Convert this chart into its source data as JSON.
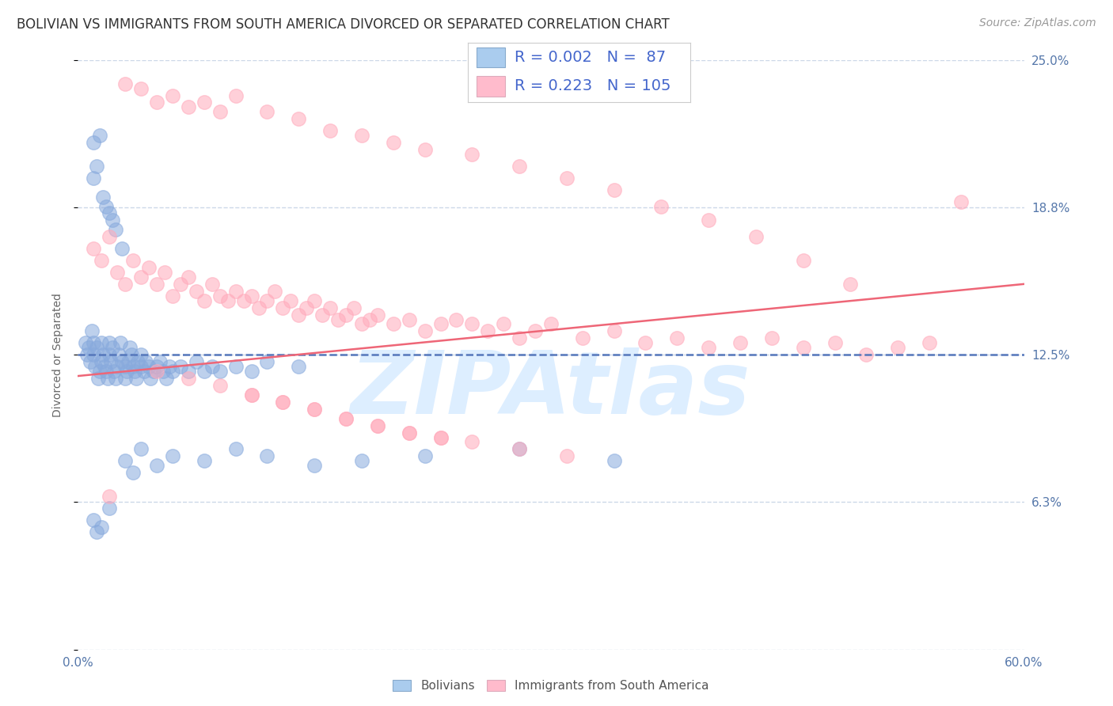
{
  "title": "BOLIVIAN VS IMMIGRANTS FROM SOUTH AMERICA DIVORCED OR SEPARATED CORRELATION CHART",
  "source_text": "Source: ZipAtlas.com",
  "ylabel": "Divorced or Separated",
  "xlim": [
    0.0,
    0.6
  ],
  "ylim": [
    0.0,
    0.25
  ],
  "yticks": [
    0.0,
    0.0625,
    0.125,
    0.1875,
    0.25
  ],
  "ytick_labels": [
    "",
    "6.3%",
    "12.5%",
    "18.8%",
    "25.0%"
  ],
  "xticks": [
    0.0,
    0.1,
    0.2,
    0.3,
    0.4,
    0.5,
    0.6
  ],
  "xtick_labels": [
    "0.0%",
    "",
    "",
    "",
    "",
    "",
    "60.0%"
  ],
  "legend_entries": [
    {
      "color_face": "#aaccee",
      "color_edge": "#88aacc",
      "R": "0.002",
      "N": " 87"
    },
    {
      "color_face": "#ffbbcc",
      "color_edge": "#ddaabb",
      "R": "0.223",
      "N": "105"
    }
  ],
  "legend_label_color": "#4466cc",
  "blue_scatter_color": "#88aadd",
  "pink_scatter_color": "#ffaabb",
  "blue_line_color": "#5577bb",
  "pink_line_color": "#ee6677",
  "grid_color": "#ccd8e8",
  "watermark_text": "ZIPAtlas",
  "watermark_color": "#ddeeff",
  "background_color": "#ffffff",
  "title_color": "#333333",
  "source_color": "#999999",
  "axis_text_color": "#5577aa",
  "title_fontsize": 12,
  "ylabel_fontsize": 10,
  "tick_fontsize": 11,
  "legend_fontsize": 14,
  "source_fontsize": 10,
  "blue_line_x": [
    0.0,
    0.6
  ],
  "blue_line_y": [
    0.125,
    0.125
  ],
  "pink_line_x": [
    0.0,
    0.6
  ],
  "pink_line_y": [
    0.116,
    0.155
  ],
  "bottom_labels": [
    "Bolivians",
    "Immigrants from South America"
  ],
  "figsize": [
    14.06,
    8.92
  ],
  "dpi": 100,
  "blue_x": [
    0.005,
    0.006,
    0.007,
    0.008,
    0.009,
    0.01,
    0.01,
    0.011,
    0.012,
    0.013,
    0.014,
    0.015,
    0.015,
    0.016,
    0.017,
    0.018,
    0.019,
    0.02,
    0.02,
    0.021,
    0.022,
    0.023,
    0.024,
    0.025,
    0.026,
    0.027,
    0.028,
    0.03,
    0.03,
    0.031,
    0.032,
    0.033,
    0.034,
    0.035,
    0.036,
    0.037,
    0.038,
    0.04,
    0.04,
    0.042,
    0.043,
    0.045,
    0.046,
    0.048,
    0.05,
    0.052,
    0.054,
    0.056,
    0.058,
    0.06,
    0.065,
    0.07,
    0.075,
    0.08,
    0.085,
    0.09,
    0.1,
    0.11,
    0.12,
    0.14,
    0.01,
    0.01,
    0.012,
    0.014,
    0.016,
    0.018,
    0.02,
    0.022,
    0.024,
    0.028,
    0.03,
    0.035,
    0.04,
    0.05,
    0.06,
    0.08,
    0.1,
    0.12,
    0.15,
    0.18,
    0.22,
    0.28,
    0.34,
    0.01,
    0.012,
    0.015,
    0.02
  ],
  "blue_y": [
    0.13,
    0.125,
    0.128,
    0.122,
    0.135,
    0.13,
    0.125,
    0.12,
    0.128,
    0.115,
    0.118,
    0.122,
    0.13,
    0.125,
    0.12,
    0.118,
    0.115,
    0.125,
    0.13,
    0.122,
    0.128,
    0.118,
    0.115,
    0.12,
    0.125,
    0.13,
    0.122,
    0.115,
    0.12,
    0.118,
    0.122,
    0.128,
    0.125,
    0.12,
    0.118,
    0.115,
    0.122,
    0.12,
    0.125,
    0.118,
    0.122,
    0.12,
    0.115,
    0.118,
    0.12,
    0.122,
    0.118,
    0.115,
    0.12,
    0.118,
    0.12,
    0.118,
    0.122,
    0.118,
    0.12,
    0.118,
    0.12,
    0.118,
    0.122,
    0.12,
    0.2,
    0.215,
    0.205,
    0.218,
    0.192,
    0.188,
    0.185,
    0.182,
    0.178,
    0.17,
    0.08,
    0.075,
    0.085,
    0.078,
    0.082,
    0.08,
    0.085,
    0.082,
    0.078,
    0.08,
    0.082,
    0.085,
    0.08,
    0.055,
    0.05,
    0.052,
    0.06
  ],
  "pink_x": [
    0.01,
    0.015,
    0.02,
    0.025,
    0.03,
    0.035,
    0.04,
    0.045,
    0.05,
    0.055,
    0.06,
    0.065,
    0.07,
    0.075,
    0.08,
    0.085,
    0.09,
    0.095,
    0.1,
    0.105,
    0.11,
    0.115,
    0.12,
    0.125,
    0.13,
    0.135,
    0.14,
    0.145,
    0.15,
    0.155,
    0.16,
    0.165,
    0.17,
    0.175,
    0.18,
    0.185,
    0.19,
    0.2,
    0.21,
    0.22,
    0.23,
    0.24,
    0.25,
    0.26,
    0.27,
    0.28,
    0.29,
    0.3,
    0.32,
    0.34,
    0.36,
    0.38,
    0.4,
    0.42,
    0.44,
    0.46,
    0.48,
    0.5,
    0.52,
    0.54,
    0.03,
    0.04,
    0.05,
    0.06,
    0.07,
    0.08,
    0.09,
    0.1,
    0.12,
    0.14,
    0.16,
    0.18,
    0.2,
    0.22,
    0.25,
    0.28,
    0.31,
    0.34,
    0.37,
    0.4,
    0.43,
    0.46,
    0.49,
    0.11,
    0.13,
    0.15,
    0.17,
    0.19,
    0.21,
    0.23,
    0.05,
    0.07,
    0.09,
    0.11,
    0.13,
    0.15,
    0.17,
    0.19,
    0.21,
    0.23,
    0.25,
    0.28,
    0.31,
    0.56,
    0.02
  ],
  "pink_y": [
    0.17,
    0.165,
    0.175,
    0.16,
    0.155,
    0.165,
    0.158,
    0.162,
    0.155,
    0.16,
    0.15,
    0.155,
    0.158,
    0.152,
    0.148,
    0.155,
    0.15,
    0.148,
    0.152,
    0.148,
    0.15,
    0.145,
    0.148,
    0.152,
    0.145,
    0.148,
    0.142,
    0.145,
    0.148,
    0.142,
    0.145,
    0.14,
    0.142,
    0.145,
    0.138,
    0.14,
    0.142,
    0.138,
    0.14,
    0.135,
    0.138,
    0.14,
    0.138,
    0.135,
    0.138,
    0.132,
    0.135,
    0.138,
    0.132,
    0.135,
    0.13,
    0.132,
    0.128,
    0.13,
    0.132,
    0.128,
    0.13,
    0.125,
    0.128,
    0.13,
    0.24,
    0.238,
    0.232,
    0.235,
    0.23,
    0.232,
    0.228,
    0.235,
    0.228,
    0.225,
    0.22,
    0.218,
    0.215,
    0.212,
    0.21,
    0.205,
    0.2,
    0.195,
    0.188,
    0.182,
    0.175,
    0.165,
    0.155,
    0.108,
    0.105,
    0.102,
    0.098,
    0.095,
    0.092,
    0.09,
    0.118,
    0.115,
    0.112,
    0.108,
    0.105,
    0.102,
    0.098,
    0.095,
    0.092,
    0.09,
    0.088,
    0.085,
    0.082,
    0.19,
    0.065
  ]
}
